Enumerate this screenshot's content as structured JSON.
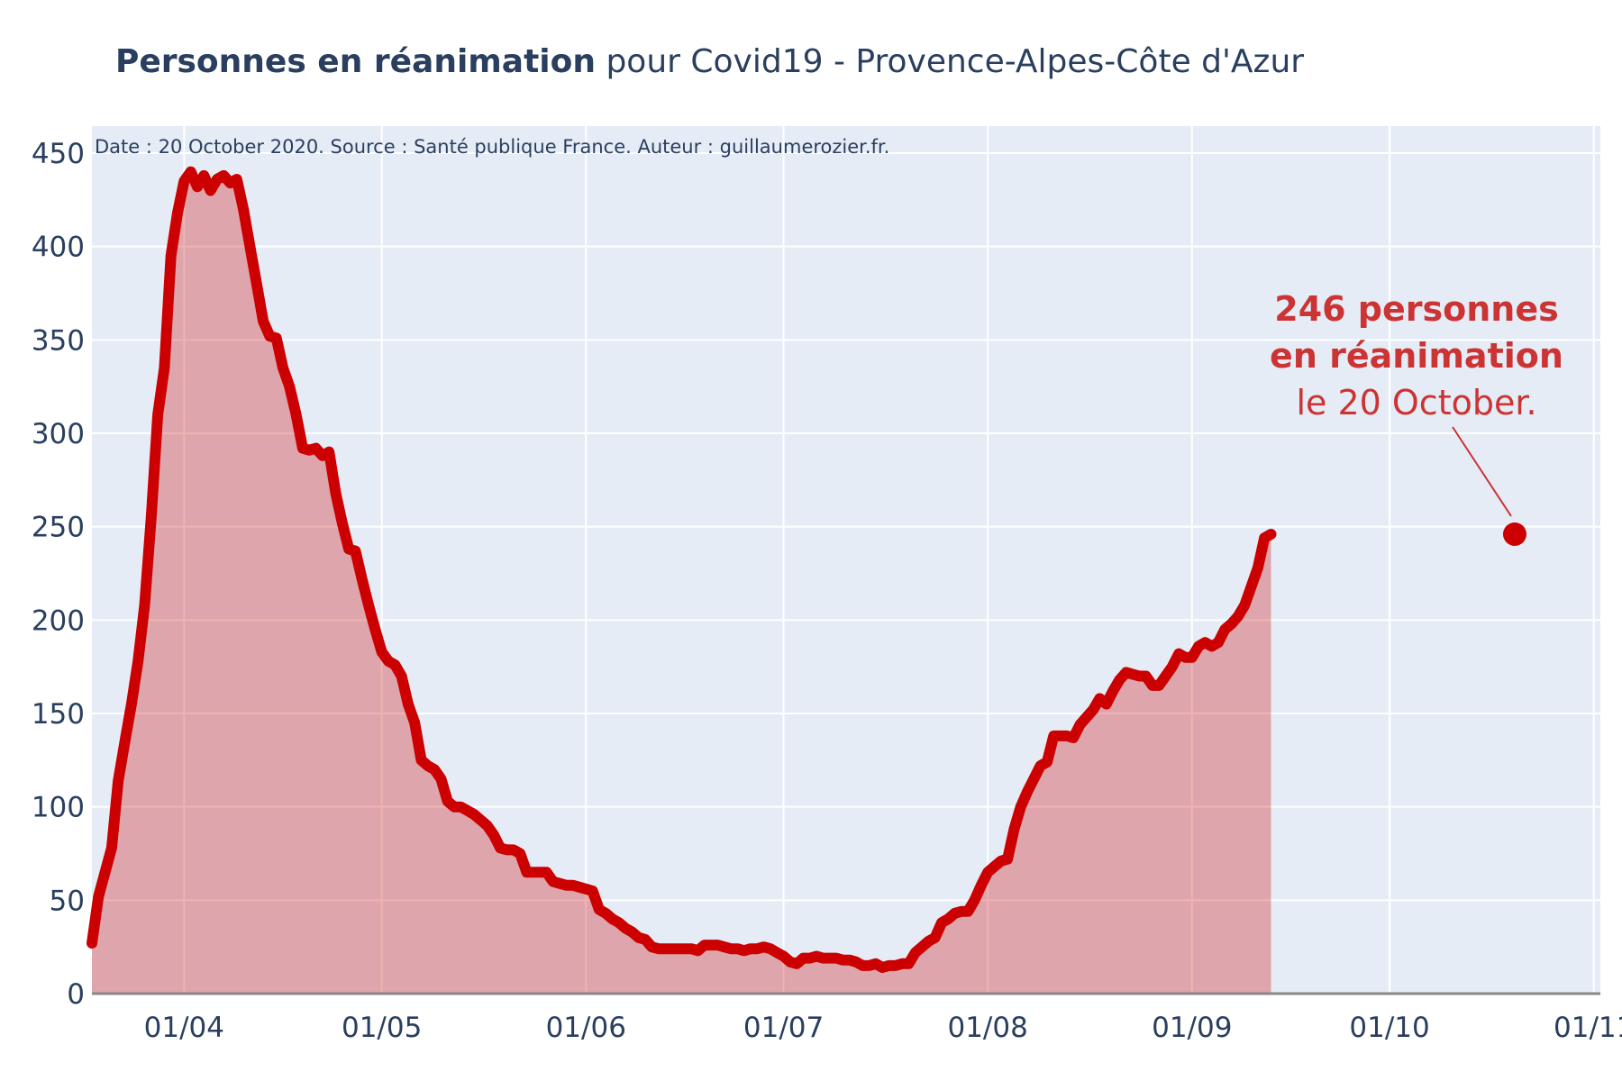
{
  "title": {
    "bold": "Personnes en réanimation",
    "rest": " pour Covid19 - Provence-Alpes-Côte d'Azur"
  },
  "credit": "Date : 20 October 2020. Source : Santé publique France. Auteur : guillaumerozier.fr.",
  "annotation": {
    "line1": "246 personnes",
    "line2": "en réanimation",
    "line3": "le 20 October."
  },
  "colors": {
    "line": "#cc0000",
    "fill": "rgba(204,0,0,0.3)",
    "plot_bg": "#e5ecf6",
    "annotation": "#cc3333"
  },
  "chart_data": {
    "type": "area",
    "x_start": "2020-03-18",
    "x_end": "2020-10-20",
    "xlim": [
      "2020-03-18",
      "2020-11-02"
    ],
    "ylim": [
      0,
      450
    ],
    "yticks": [
      0,
      50,
      100,
      150,
      200,
      250,
      300,
      350,
      400,
      450
    ],
    "xticks": [
      {
        "date": "2020-04-01",
        "label": "01/04"
      },
      {
        "date": "2020-05-01",
        "label": "01/05"
      },
      {
        "date": "2020-06-01",
        "label": "01/06"
      },
      {
        "date": "2020-07-01",
        "label": "01/07"
      },
      {
        "date": "2020-08-01",
        "label": "01/08"
      },
      {
        "date": "2020-09-01",
        "label": "01/09"
      },
      {
        "date": "2020-10-01",
        "label": "01/10"
      },
      {
        "date": "2020-11-01",
        "label": "01/11"
      }
    ],
    "grid": true,
    "series": [
      {
        "values": [
          27,
          52,
          65,
          78,
          114,
          135,
          155,
          178,
          208,
          255,
          310,
          335,
          395,
          418,
          435,
          440,
          432,
          438,
          430,
          436,
          438,
          434,
          436,
          420,
          400,
          380,
          360,
          352,
          351,
          335,
          325,
          310,
          292,
          291,
          292,
          288,
          290,
          268,
          252,
          238,
          237,
          222,
          208,
          195,
          183,
          178,
          176,
          170,
          155,
          145,
          125,
          122,
          120,
          115,
          103,
          100,
          100,
          98,
          96,
          93,
          90,
          85,
          78,
          77,
          77,
          75,
          65,
          65,
          65,
          65,
          60,
          59,
          58,
          58,
          57,
          56,
          55,
          45,
          43,
          40,
          38,
          35,
          33,
          30,
          29,
          25,
          24,
          24,
          24,
          24,
          24,
          24,
          23,
          26,
          26,
          26,
          25,
          24,
          24,
          23,
          24,
          24,
          25,
          24,
          22,
          20,
          17,
          16,
          19,
          19,
          20,
          19,
          19,
          19,
          18,
          18,
          17,
          15,
          15,
          16,
          14,
          15,
          15,
          16,
          16,
          22,
          25,
          28,
          30,
          38,
          40,
          43,
          44,
          44,
          50,
          58,
          65,
          68,
          71,
          72,
          88,
          100,
          108,
          115,
          122,
          124,
          138,
          138,
          138,
          137,
          144,
          148,
          152,
          158,
          155,
          162,
          168,
          172,
          171,
          170,
          170,
          165,
          165,
          170,
          175,
          182,
          180,
          180,
          186,
          188,
          186,
          188,
          195,
          198,
          202,
          208,
          218,
          228,
          244,
          246
        ]
      }
    ],
    "last_point": {
      "date": "2020-10-20",
      "value": 246
    }
  }
}
